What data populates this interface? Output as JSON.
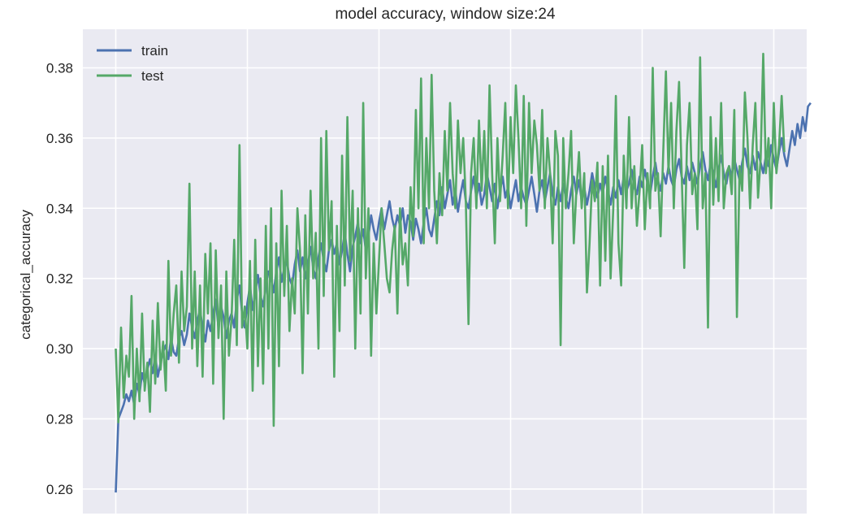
{
  "chart_data": {
    "type": "line",
    "title": "model accuracy, window size:24",
    "xlabel": "",
    "ylabel": "categorical_accuracy",
    "xlim": [
      -12.5,
      262.5
    ],
    "ylim": [
      0.253,
      0.391
    ],
    "x_ticks": [
      0,
      50,
      100,
      150,
      200,
      250
    ],
    "y_ticks": [
      0.26,
      0.28,
      0.3,
      0.32,
      0.34,
      0.36,
      0.38
    ],
    "y_tick_labels": [
      "0.26",
      "0.28",
      "0.30",
      "0.32",
      "0.34",
      "0.36",
      "0.38"
    ],
    "grid": true,
    "legend_position": "top-left",
    "series": [
      {
        "name": "train",
        "color": "#4c72b0",
        "values": [
          0.259,
          0.28,
          0.282,
          0.284,
          0.287,
          0.285,
          0.288,
          0.284,
          0.29,
          0.287,
          0.293,
          0.29,
          0.294,
          0.297,
          0.293,
          0.298,
          0.292,
          0.296,
          0.299,
          0.301,
          0.297,
          0.303,
          0.299,
          0.298,
          0.303,
          0.305,
          0.301,
          0.304,
          0.31,
          0.306,
          0.303,
          0.308,
          0.311,
          0.306,
          0.302,
          0.308,
          0.305,
          0.31,
          0.314,
          0.306,
          0.312,
          0.309,
          0.303,
          0.308,
          0.31,
          0.306,
          0.314,
          0.318,
          0.31,
          0.306,
          0.313,
          0.318,
          0.311,
          0.316,
          0.321,
          0.315,
          0.312,
          0.318,
          0.322,
          0.32,
          0.316,
          0.322,
          0.326,
          0.319,
          0.323,
          0.325,
          0.32,
          0.318,
          0.324,
          0.328,
          0.322,
          0.326,
          0.32,
          0.324,
          0.329,
          0.323,
          0.32,
          0.326,
          0.33,
          0.325,
          0.322,
          0.328,
          0.331,
          0.327,
          0.33,
          0.324,
          0.328,
          0.333,
          0.327,
          0.322,
          0.329,
          0.332,
          0.336,
          0.33,
          0.334,
          0.328,
          0.332,
          0.338,
          0.334,
          0.331,
          0.336,
          0.34,
          0.334,
          0.338,
          0.342,
          0.337,
          0.334,
          0.338,
          0.335,
          0.34,
          0.333,
          0.338,
          0.336,
          0.331,
          0.337,
          0.334,
          0.33,
          0.336,
          0.34,
          0.334,
          0.332,
          0.337,
          0.342,
          0.338,
          0.346,
          0.34,
          0.344,
          0.348,
          0.341,
          0.345,
          0.339,
          0.344,
          0.348,
          0.342,
          0.34,
          0.345,
          0.349,
          0.343,
          0.347,
          0.341,
          0.344,
          0.35,
          0.346,
          0.342,
          0.347,
          0.34,
          0.345,
          0.349,
          0.343,
          0.346,
          0.34,
          0.344,
          0.348,
          0.342,
          0.346,
          0.343,
          0.341,
          0.345,
          0.349,
          0.344,
          0.339,
          0.345,
          0.348,
          0.342,
          0.346,
          0.35,
          0.344,
          0.341,
          0.346,
          0.342,
          0.347,
          0.343,
          0.34,
          0.345,
          0.349,
          0.344,
          0.348,
          0.342,
          0.346,
          0.341,
          0.345,
          0.35,
          0.346,
          0.343,
          0.347,
          0.344,
          0.349,
          0.345,
          0.341,
          0.346,
          0.343,
          0.348,
          0.344,
          0.349,
          0.345,
          0.347,
          0.351,
          0.346,
          0.344,
          0.349,
          0.346,
          0.351,
          0.347,
          0.344,
          0.349,
          0.353,
          0.348,
          0.345,
          0.35,
          0.347,
          0.352,
          0.348,
          0.346,
          0.351,
          0.354,
          0.349,
          0.347,
          0.352,
          0.348,
          0.353,
          0.35,
          0.347,
          0.352,
          0.356,
          0.351,
          0.348,
          0.353,
          0.35,
          0.346,
          0.351,
          0.355,
          0.35,
          0.347,
          0.352,
          0.349,
          0.354,
          0.351,
          0.348,
          0.353,
          0.357,
          0.352,
          0.35,
          0.355,
          0.351,
          0.356,
          0.353,
          0.35,
          0.355,
          0.352,
          0.358,
          0.354,
          0.351,
          0.356,
          0.36,
          0.355,
          0.352,
          0.357,
          0.362,
          0.358,
          0.364,
          0.36,
          0.366,
          0.362,
          0.369,
          0.37
        ]
      },
      {
        "name": "test",
        "color": "#55a868",
        "values": [
          0.3,
          0.279,
          0.306,
          0.286,
          0.298,
          0.292,
          0.315,
          0.28,
          0.3,
          0.285,
          0.31,
          0.288,
          0.296,
          0.282,
          0.308,
          0.29,
          0.313,
          0.294,
          0.302,
          0.288,
          0.325,
          0.298,
          0.31,
          0.318,
          0.296,
          0.322,
          0.305,
          0.312,
          0.347,
          0.3,
          0.322,
          0.295,
          0.318,
          0.292,
          0.327,
          0.31,
          0.33,
          0.29,
          0.328,
          0.303,
          0.318,
          0.28,
          0.322,
          0.298,
          0.309,
          0.331,
          0.301,
          0.358,
          0.306,
          0.312,
          0.3,
          0.325,
          0.288,
          0.331,
          0.295,
          0.32,
          0.29,
          0.335,
          0.3,
          0.34,
          0.278,
          0.33,
          0.295,
          0.345,
          0.315,
          0.335,
          0.305,
          0.32,
          0.31,
          0.34,
          0.328,
          0.293,
          0.338,
          0.31,
          0.345,
          0.32,
          0.333,
          0.3,
          0.36,
          0.315,
          0.362,
          0.328,
          0.342,
          0.292,
          0.335,
          0.305,
          0.355,
          0.318,
          0.366,
          0.325,
          0.345,
          0.3,
          0.34,
          0.31,
          0.37,
          0.32,
          0.34,
          0.298,
          0.33,
          0.31,
          0.325,
          0.34,
          0.33,
          0.32,
          0.316,
          0.328,
          0.335,
          0.31,
          0.34,
          0.324,
          0.33,
          0.318,
          0.346,
          0.332,
          0.368,
          0.34,
          0.377,
          0.33,
          0.36,
          0.34,
          0.378,
          0.345,
          0.33,
          0.35,
          0.338,
          0.362,
          0.345,
          0.37,
          0.35,
          0.34,
          0.365,
          0.35,
          0.36,
          0.342,
          0.307,
          0.35,
          0.36,
          0.34,
          0.365,
          0.345,
          0.362,
          0.34,
          0.375,
          0.35,
          0.33,
          0.36,
          0.342,
          0.355,
          0.37,
          0.34,
          0.366,
          0.35,
          0.375,
          0.36,
          0.34,
          0.372,
          0.335,
          0.37,
          0.35,
          0.365,
          0.358,
          0.345,
          0.368,
          0.34,
          0.36,
          0.35,
          0.33,
          0.362,
          0.355,
          0.301,
          0.36,
          0.34,
          0.35,
          0.362,
          0.33,
          0.345,
          0.356,
          0.34,
          0.35,
          0.316,
          0.33,
          0.348,
          0.342,
          0.353,
          0.318,
          0.352,
          0.325,
          0.355,
          0.32,
          0.34,
          0.372,
          0.33,
          0.318,
          0.355,
          0.34,
          0.366,
          0.34,
          0.352,
          0.335,
          0.345,
          0.358,
          0.334,
          0.35,
          0.34,
          0.38,
          0.345,
          0.35,
          0.332,
          0.356,
          0.379,
          0.35,
          0.37,
          0.34,
          0.362,
          0.376,
          0.35,
          0.323,
          0.358,
          0.37,
          0.344,
          0.35,
          0.334,
          0.383,
          0.34,
          0.35,
          0.306,
          0.366,
          0.341,
          0.36,
          0.342,
          0.37,
          0.34,
          0.35,
          0.352,
          0.344,
          0.368,
          0.309,
          0.352,
          0.345,
          0.373,
          0.36,
          0.34,
          0.358,
          0.37,
          0.343,
          0.354,
          0.384,
          0.35,
          0.36,
          0.34,
          0.37,
          0.35,
          0.358,
          0.372,
          0.356
        ]
      }
    ]
  }
}
